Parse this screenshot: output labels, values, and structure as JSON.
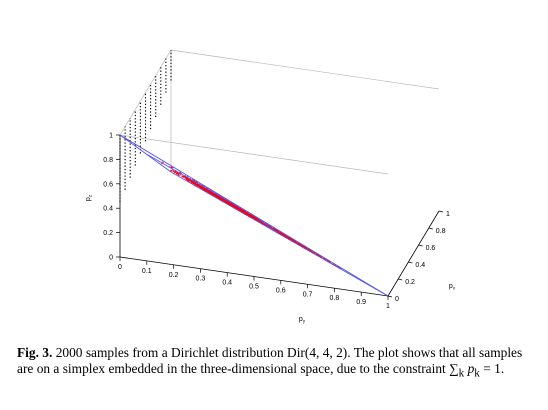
{
  "chart_data": {
    "type": "scatter",
    "dimensions": 3,
    "n_points": 2000,
    "distribution": "Dir(4,4,2)",
    "point_color": "#ff0000",
    "simplex_color": "#5555ee",
    "x_axis": {
      "label": "p_x",
      "ticks": [
        "0",
        "0.2",
        "0.4",
        "0.6",
        "0.8",
        "1"
      ],
      "range": [
        0,
        1
      ]
    },
    "y_axis": {
      "label": "p_y",
      "ticks": [
        "0",
        "0.1",
        "0.2",
        "0.3",
        "0.4",
        "0.5",
        "0.6",
        "0.7",
        "0.8",
        "0.9",
        "1"
      ],
      "range": [
        0,
        1
      ]
    },
    "z_axis": {
      "label": "p_z",
      "ticks": [
        "0",
        "0.2",
        "0.4",
        "0.6",
        "0.8",
        "1"
      ],
      "range": [
        0,
        1
      ]
    },
    "constraint": "sum of p_k = 1"
  },
  "caption": {
    "fig_label": "Fig. 3.",
    "text": "2000 samples from a Dirichlet distribution Dir(4, 4, 2). The plot shows that all samples are on a simplex embedded in the three-dimensional space, due to the constraint",
    "constraint_sum": "∑",
    "constraint_sub": "k",
    "constraint_var": "p",
    "constraint_var_sub": "k",
    "constraint_eq": "= 1."
  }
}
